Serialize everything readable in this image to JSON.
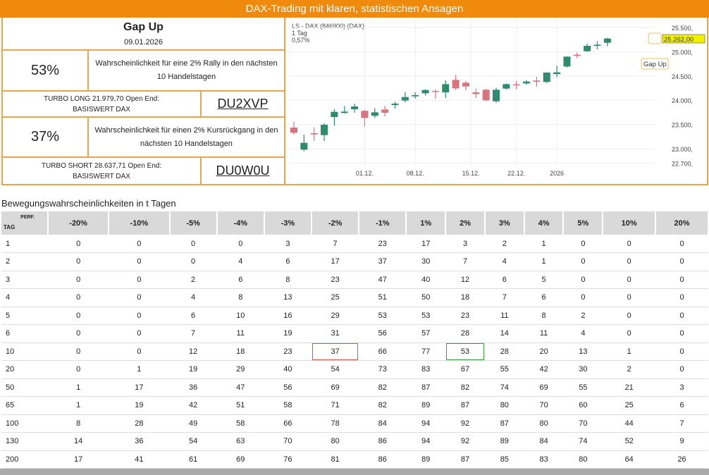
{
  "banner": "DAX-Trading mit klaren, statistischen Ansagen",
  "signal": {
    "title": "Gap Up",
    "date": "09.01.2026"
  },
  "long": {
    "pct": "53%",
    "desc": "Wahrscheinlichkeit für eine 2% Rally in den nächsten 10 Handelstagen",
    "turbo_line1": "TURBO LONG 21.979,70 Open End:",
    "turbo_line2": "BASISWERT DAX",
    "code": "DU2XVP"
  },
  "short": {
    "pct": "37%",
    "desc": "Wahrscheinlichkeit für einen 2% Kursrückgang in den nächsten 10 Handelstagen",
    "turbo_line1": "TURBO SHORT 28.637,71 Open End:",
    "turbo_line2": "BASISWERT DAX",
    "code": "DU0W0U"
  },
  "chart_data": {
    "type": "candlestick",
    "title": "LS - DAX (846900) (DAX)",
    "interval": "1 Tag",
    "change": "0,57%",
    "last_price": "25.262,00",
    "annotation": "Gap Up",
    "y_ticks": [
      "25.500,",
      "25.000,",
      "24.500,",
      "24.000,",
      "23.500,",
      "23.000,",
      "22.700,"
    ],
    "y_tick_values": [
      25500,
      25000,
      24500,
      24000,
      23500,
      23000,
      22700
    ],
    "x_ticks": [
      "01.12.",
      "08.12.",
      "15.12.",
      "22.12.",
      "2026"
    ],
    "x_tick_index": [
      7,
      12,
      17.5,
      22,
      26
    ],
    "ylim": [
      22500,
      25600
    ],
    "ohlc": [
      [
        23436,
        23558,
        23296,
        23330
      ],
      [
        22981,
        23291,
        22952,
        23122
      ],
      [
        23320,
        23441,
        23160,
        23296
      ],
      [
        23281,
        23524,
        23160,
        23495
      ],
      [
        23654,
        23814,
        23475,
        23761
      ],
      [
        23737,
        23882,
        23727,
        23766
      ],
      [
        23814,
        23931,
        23742,
        23872
      ],
      [
        23781,
        23800,
        23461,
        23635
      ],
      [
        23679,
        23838,
        23635,
        23751
      ],
      [
        23809,
        23882,
        23669,
        23742
      ],
      [
        23901,
        23969,
        23829,
        23930
      ],
      [
        23994,
        24168,
        23955,
        24066
      ],
      [
        24080,
        24163,
        24032,
        24105
      ],
      [
        24144,
        24226,
        24095,
        24211
      ],
      [
        24192,
        24226,
        24032,
        24172
      ],
      [
        24163,
        24410,
        24042,
        24332
      ],
      [
        24420,
        24521,
        24211,
        24245
      ],
      [
        24362,
        24396,
        24202,
        24284
      ],
      [
        24163,
        24240,
        24042,
        24129
      ],
      [
        24216,
        24235,
        23979,
        23998
      ],
      [
        23979,
        24260,
        23950,
        24216
      ],
      [
        24240,
        24347,
        24221,
        24332
      ],
      [
        24328,
        24396,
        24231,
        24308
      ],
      [
        24347,
        24415,
        24318,
        24386
      ],
      [
        24405,
        24483,
        24279,
        24381
      ],
      [
        24376,
        24575,
        24357,
        24570
      ],
      [
        24541,
        24710,
        24478,
        24575
      ],
      [
        24696,
        24904,
        24677,
        24899
      ],
      [
        24938,
        24986,
        24865,
        24914
      ],
      [
        25011,
        25170,
        24996,
        25122
      ],
      [
        25122,
        25219,
        25049,
        25146
      ],
      [
        25185,
        25287,
        25112,
        25272
      ]
    ],
    "colors": {
      "up": "#2e8b6b",
      "down": "#d9737d"
    }
  },
  "table": {
    "title": "Bewegungswahrscheinlichkeiten in t Tagen",
    "corner_top": "PERF.",
    "corner_bottom": "TAG",
    "columns": [
      "-20%",
      "-10%",
      "-5%",
      "-4%",
      "-3%",
      "-2%",
      "-1%",
      "1%",
      "2%",
      "3%",
      "4%",
      "5%",
      "10%",
      "20%"
    ],
    "rows": [
      [
        "1",
        "0",
        "0",
        "0",
        "0",
        "3",
        "7",
        "23",
        "17",
        "3",
        "2",
        "1",
        "0",
        "0",
        "0"
      ],
      [
        "2",
        "0",
        "0",
        "0",
        "4",
        "6",
        "17",
        "37",
        "30",
        "7",
        "4",
        "1",
        "0",
        "0",
        "0"
      ],
      [
        "3",
        "0",
        "0",
        "2",
        "6",
        "8",
        "23",
        "47",
        "40",
        "12",
        "6",
        "5",
        "0",
        "0",
        "0"
      ],
      [
        "4",
        "0",
        "0",
        "4",
        "8",
        "13",
        "25",
        "51",
        "50",
        "18",
        "7",
        "6",
        "0",
        "0",
        "0"
      ],
      [
        "5",
        "0",
        "0",
        "6",
        "10",
        "16",
        "29",
        "53",
        "53",
        "23",
        "11",
        "8",
        "2",
        "0",
        "0"
      ],
      [
        "6",
        "0",
        "0",
        "7",
        "11",
        "19",
        "31",
        "56",
        "57",
        "28",
        "14",
        "11",
        "4",
        "0",
        "0"
      ],
      [
        "10",
        "0",
        "0",
        "12",
        "18",
        "23",
        "37",
        "66",
        "77",
        "53",
        "28",
        "20",
        "13",
        "1",
        "0"
      ],
      [
        "20",
        "0",
        "1",
        "19",
        "29",
        "40",
        "54",
        "73",
        "83",
        "67",
        "55",
        "42",
        "30",
        "2",
        "0"
      ],
      [
        "50",
        "1",
        "17",
        "36",
        "47",
        "56",
        "69",
        "82",
        "87",
        "82",
        "74",
        "69",
        "55",
        "21",
        "3"
      ],
      [
        "65",
        "1",
        "19",
        "42",
        "51",
        "58",
        "71",
        "82",
        "89",
        "87",
        "80",
        "70",
        "60",
        "25",
        "6"
      ],
      [
        "100",
        "8",
        "28",
        "49",
        "58",
        "66",
        "78",
        "84",
        "94",
        "92",
        "87",
        "80",
        "70",
        "44",
        "7"
      ],
      [
        "130",
        "14",
        "36",
        "54",
        "63",
        "70",
        "80",
        "86",
        "94",
        "92",
        "89",
        "84",
        "74",
        "52",
        "9"
      ],
      [
        "200",
        "17",
        "41",
        "61",
        "69",
        "76",
        "81",
        "86",
        "89",
        "87",
        "85",
        "83",
        "80",
        "64",
        "26"
      ]
    ]
  }
}
